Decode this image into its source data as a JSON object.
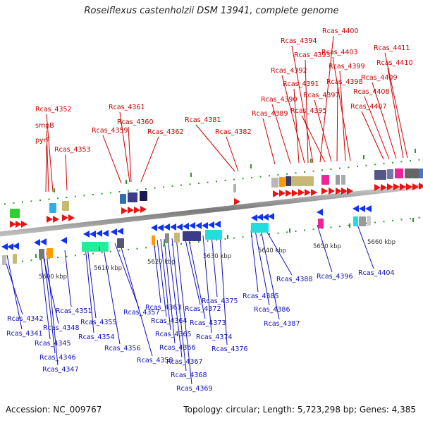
{
  "title": "Roseiflexus castenholzii DSM 13941, complete genome",
  "footer": {
    "accession": "Accession: NC_009767",
    "stats": "Topology: circular; Length: 5,723,298 bp; Genes: 4,385"
  },
  "kbp_labels": [
    "5600 kbp",
    "5610 kbp",
    "5620 kbp",
    "5630 kbp",
    "5640 kbp",
    "5650 kbp",
    "5660 kbp"
  ],
  "top_genes": [
    "Rcas_4352",
    "smpB",
    "pyrF",
    "Rcas_4353",
    "Rcas_4361",
    "Rcas_4360",
    "Rcas_4359",
    "Rcas_4362",
    "Rcas_4381",
    "Rcas_4382",
    "Rcas_4400",
    "Rcas_4394",
    "Rcas_4393",
    "Rcas_4403",
    "Rcas_4392",
    "Rcas_4399",
    "Rcas_4391",
    "Rcas_4398",
    "Rcas_4390",
    "Rcas_4397",
    "Rcas_4389",
    "Rcas_4395",
    "Rcas_4411",
    "Rcas_4410",
    "Rcas_4409",
    "Rcas_4408",
    "Rcas_4407"
  ],
  "bottom_genes": [
    "Rcas_4342",
    "Rcas_4341",
    "Rcas_4348",
    "Rcas_4345",
    "Rcas_4346",
    "Rcas_4347",
    "Rcas_4351",
    "Rcas_4355",
    "Rcas_4354",
    "Rcas_4356",
    "Rcas_4357",
    "Rcas_4358",
    "Rcas_4363",
    "Rcas_4364",
    "Rcas_4365",
    "Rcas_4366",
    "Rcas_4367",
    "Rcas_4368",
    "Rcas_4369",
    "Rcas_4372",
    "Rcas_4373",
    "Rcas_4375",
    "Rcas_4374",
    "Rcas_4376",
    "Rcas_4385",
    "Rcas_4386",
    "Rcas_4387",
    "Rcas_4388",
    "Rcas_4396",
    "Rcas_4404"
  ],
  "colors": {
    "forward": "#ee1111",
    "reverse": "#1133ee",
    "top_label": "#cc0000",
    "bottom_label": "#1010bb",
    "backbone": "#888888",
    "tick": "#2a9a2a"
  }
}
